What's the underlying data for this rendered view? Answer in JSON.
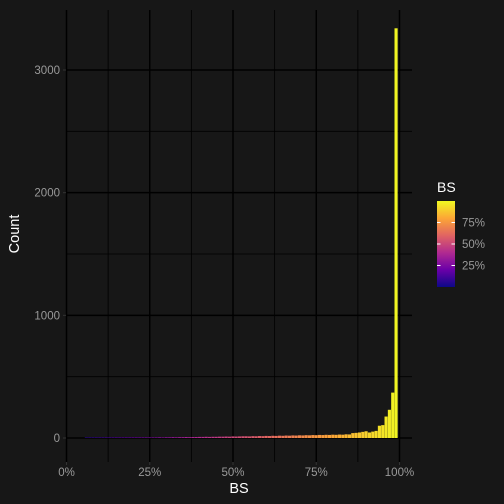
{
  "chart_data": {
    "type": "bar",
    "title": "",
    "xlabel": "BS",
    "ylabel": "Count",
    "xlim": [
      0,
      1
    ],
    "ylim": [
      -130,
      3500
    ],
    "x_ticks": [
      {
        "value": 0,
        "label": "0%"
      },
      {
        "value": 0.25,
        "label": "25%"
      },
      {
        "value": 0.5,
        "label": "50%"
      },
      {
        "value": 0.75,
        "label": "75%"
      },
      {
        "value": 1,
        "label": "100%"
      }
    ],
    "y_ticks": [
      {
        "value": 0,
        "label": "0"
      },
      {
        "value": 1000,
        "label": "1000"
      },
      {
        "value": 2000,
        "label": "2000"
      },
      {
        "value": 3000,
        "label": "3000"
      }
    ],
    "grid": true,
    "bin_width": 0.01,
    "bins": [
      {
        "x": 0.06,
        "count": 1
      },
      {
        "x": 0.07,
        "count": 1
      },
      {
        "x": 0.08,
        "count": 1
      },
      {
        "x": 0.09,
        "count": 1
      },
      {
        "x": 0.1,
        "count": 2
      },
      {
        "x": 0.11,
        "count": 1
      },
      {
        "x": 0.12,
        "count": 2
      },
      {
        "x": 0.13,
        "count": 2
      },
      {
        "x": 0.14,
        "count": 2
      },
      {
        "x": 0.15,
        "count": 3
      },
      {
        "x": 0.16,
        "count": 2
      },
      {
        "x": 0.17,
        "count": 3
      },
      {
        "x": 0.18,
        "count": 3
      },
      {
        "x": 0.19,
        "count": 3
      },
      {
        "x": 0.2,
        "count": 4
      },
      {
        "x": 0.21,
        "count": 3
      },
      {
        "x": 0.22,
        "count": 4
      },
      {
        "x": 0.23,
        "count": 4
      },
      {
        "x": 0.24,
        "count": 5
      },
      {
        "x": 0.25,
        "count": 4
      },
      {
        "x": 0.26,
        "count": 5
      },
      {
        "x": 0.27,
        "count": 5
      },
      {
        "x": 0.28,
        "count": 6
      },
      {
        "x": 0.29,
        "count": 5
      },
      {
        "x": 0.3,
        "count": 6
      },
      {
        "x": 0.31,
        "count": 6
      },
      {
        "x": 0.32,
        "count": 7
      },
      {
        "x": 0.33,
        "count": 6
      },
      {
        "x": 0.34,
        "count": 7
      },
      {
        "x": 0.35,
        "count": 7
      },
      {
        "x": 0.36,
        "count": 8
      },
      {
        "x": 0.37,
        "count": 7
      },
      {
        "x": 0.38,
        "count": 8
      },
      {
        "x": 0.39,
        "count": 8
      },
      {
        "x": 0.4,
        "count": 9
      },
      {
        "x": 0.41,
        "count": 9
      },
      {
        "x": 0.42,
        "count": 10
      },
      {
        "x": 0.43,
        "count": 9
      },
      {
        "x": 0.44,
        "count": 10
      },
      {
        "x": 0.45,
        "count": 10
      },
      {
        "x": 0.46,
        "count": 11
      },
      {
        "x": 0.47,
        "count": 11
      },
      {
        "x": 0.48,
        "count": 12
      },
      {
        "x": 0.49,
        "count": 11
      },
      {
        "x": 0.5,
        "count": 13
      },
      {
        "x": 0.51,
        "count": 12
      },
      {
        "x": 0.52,
        "count": 13
      },
      {
        "x": 0.53,
        "count": 14
      },
      {
        "x": 0.54,
        "count": 14
      },
      {
        "x": 0.55,
        "count": 13
      },
      {
        "x": 0.56,
        "count": 15
      },
      {
        "x": 0.57,
        "count": 14
      },
      {
        "x": 0.58,
        "count": 16
      },
      {
        "x": 0.59,
        "count": 15
      },
      {
        "x": 0.6,
        "count": 17
      },
      {
        "x": 0.61,
        "count": 16
      },
      {
        "x": 0.62,
        "count": 18
      },
      {
        "x": 0.63,
        "count": 17
      },
      {
        "x": 0.64,
        "count": 19
      },
      {
        "x": 0.65,
        "count": 18
      },
      {
        "x": 0.66,
        "count": 20
      },
      {
        "x": 0.67,
        "count": 19
      },
      {
        "x": 0.68,
        "count": 21
      },
      {
        "x": 0.69,
        "count": 20
      },
      {
        "x": 0.7,
        "count": 22
      },
      {
        "x": 0.71,
        "count": 21
      },
      {
        "x": 0.72,
        "count": 23
      },
      {
        "x": 0.73,
        "count": 22
      },
      {
        "x": 0.74,
        "count": 24
      },
      {
        "x": 0.75,
        "count": 23
      },
      {
        "x": 0.76,
        "count": 25
      },
      {
        "x": 0.77,
        "count": 24
      },
      {
        "x": 0.78,
        "count": 26
      },
      {
        "x": 0.79,
        "count": 25
      },
      {
        "x": 0.8,
        "count": 27
      },
      {
        "x": 0.81,
        "count": 26
      },
      {
        "x": 0.82,
        "count": 28
      },
      {
        "x": 0.83,
        "count": 27
      },
      {
        "x": 0.84,
        "count": 30
      },
      {
        "x": 0.85,
        "count": 29
      },
      {
        "x": 0.86,
        "count": 40
      },
      {
        "x": 0.87,
        "count": 42
      },
      {
        "x": 0.88,
        "count": 45
      },
      {
        "x": 0.89,
        "count": 50
      },
      {
        "x": 0.9,
        "count": 55
      },
      {
        "x": 0.91,
        "count": 45
      },
      {
        "x": 0.92,
        "count": 52
      },
      {
        "x": 0.93,
        "count": 58
      },
      {
        "x": 0.94,
        "count": 100
      },
      {
        "x": 0.95,
        "count": 105
      },
      {
        "x": 0.96,
        "count": 175
      },
      {
        "x": 0.97,
        "count": 230
      },
      {
        "x": 0.98,
        "count": 370
      },
      {
        "x": 0.99,
        "count": 3340
      }
    ],
    "fill_scale": {
      "name": "BS",
      "stops": [
        "#0d0887",
        "#6a00a8",
        "#b12a90",
        "#e16462",
        "#fca636",
        "#f0f921"
      ],
      "breaks": [
        {
          "value": 0.25,
          "label": "25%"
        },
        {
          "value": 0.5,
          "label": "50%"
        },
        {
          "value": 0.75,
          "label": "75%"
        }
      ]
    }
  }
}
